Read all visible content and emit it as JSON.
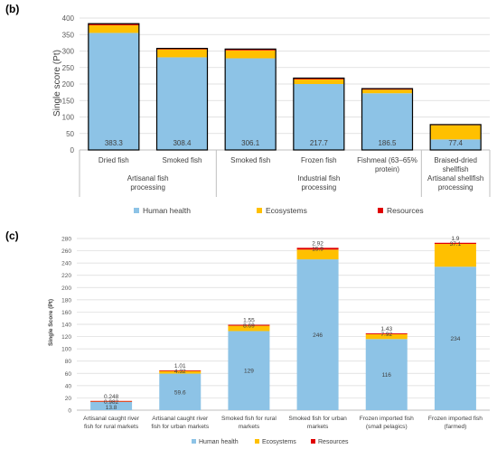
{
  "chart_data": [
    {
      "panel_label": "(b)",
      "type": "bar",
      "stacked": true,
      "ylabel": "Single score (Pt)",
      "ylim": [
        0,
        400
      ],
      "yticks": [
        0,
        50,
        100,
        150,
        200,
        250,
        300,
        350,
        400
      ],
      "categories": [
        "Dried fish",
        "Smoked fish",
        "Smoked fish",
        "Frozen fish",
        "Fishmeal (63–65% protein)",
        "Braised-dried shellfish"
      ],
      "groups": [
        {
          "label": "Artisanal fish processing",
          "span": [
            0,
            1
          ]
        },
        {
          "label": "Industrial fish processing",
          "span": [
            2,
            4
          ]
        },
        {
          "label": "Artisanal shellfish processing",
          "span": [
            5,
            5
          ]
        }
      ],
      "series": [
        {
          "name": "Human health",
          "color": "#8DC3E6",
          "values": [
            355,
            281,
            278,
            200,
            172,
            32
          ]
        },
        {
          "name": "Ecosystems",
          "color": "#FFC000",
          "values": [
            23,
            24,
            24,
            14,
            11,
            43
          ]
        },
        {
          "name": "Resources",
          "color": "#E00000",
          "values": [
            5,
            3,
            4,
            4,
            3,
            2
          ]
        }
      ],
      "totals_labels": [
        "383.3",
        "308.4",
        "306.1",
        "217.7",
        "186.5",
        "77.4"
      ],
      "outlined_bars": true,
      "legend_position": "bottom",
      "grid": true
    },
    {
      "panel_label": "(c)",
      "type": "bar",
      "stacked": true,
      "ylabel": "Single Score (Pt)",
      "ylim": [
        0,
        280
      ],
      "yticks": [
        0,
        20,
        40,
        60,
        80,
        100,
        120,
        140,
        160,
        180,
        200,
        220,
        240,
        260,
        280
      ],
      "categories": [
        "Artisanal caught river fish for rural markets",
        "Artisanal caught river fish for urban markets",
        "Smoked fish for rural markets",
        "Smoked fish for urban markets",
        "Frozen imported fish (small pelagics)",
        "Frozen imported fish (farmed)"
      ],
      "series": [
        {
          "name": "Human health",
          "color": "#8DC3E6",
          "values": [
            13.8,
            59.6,
            129,
            246,
            116,
            234
          ],
          "labels": [
            "13.8",
            "59.6",
            "129",
            "246",
            "116",
            "234"
          ]
        },
        {
          "name": "Ecosystems",
          "color": "#FFC000",
          "values": [
            0.982,
            4.32,
            8.69,
            15.9,
            7.92,
            37.1
          ],
          "labels": [
            "0.982",
            "4.32",
            "8.69",
            "15.9",
            "7.92",
            "37.1"
          ]
        },
        {
          "name": "Resources",
          "color": "#E00000",
          "values": [
            0.248,
            1.01,
            1.55,
            2.92,
            1.43,
            1.9
          ],
          "labels": [
            "0.248",
            "1.01",
            "1.55",
            "2.92",
            "1.43",
            "1.9"
          ]
        }
      ],
      "legend_position": "bottom",
      "grid": true
    }
  ]
}
